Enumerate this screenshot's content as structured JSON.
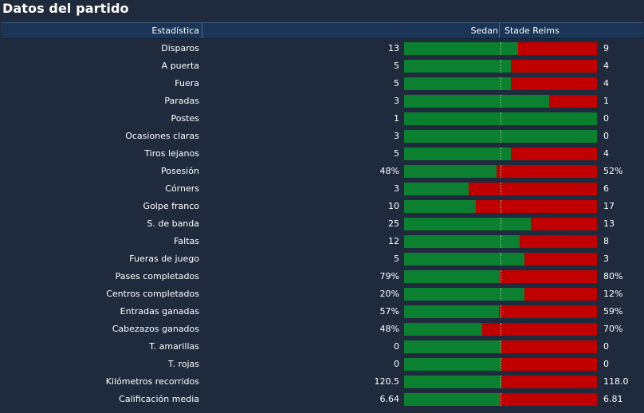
{
  "title": "Datos del partido",
  "header": {
    "stat_label": "Estadística",
    "home_team": "Sedan",
    "away_team": "Stade Reims"
  },
  "colors": {
    "home": "#0a8030",
    "away": "#c00000",
    "background": "#1f2b3c",
    "header": "#1b3556"
  },
  "stats": [
    {
      "label": "Disparos",
      "home": "13",
      "away": "9",
      "home_share": 0.59
    },
    {
      "label": "A puerta",
      "home": "5",
      "away": "4",
      "home_share": 0.555
    },
    {
      "label": "Fuera",
      "home": "5",
      "away": "4",
      "home_share": 0.555
    },
    {
      "label": "Paradas",
      "home": "3",
      "away": "1",
      "home_share": 0.75
    },
    {
      "label": "Postes",
      "home": "1",
      "away": "0",
      "home_share": 1.0
    },
    {
      "label": "Ocasiones claras",
      "home": "3",
      "away": "0",
      "home_share": 1.0
    },
    {
      "label": "Tiros lejanos",
      "home": "5",
      "away": "4",
      "home_share": 0.555
    },
    {
      "label": "Posesión",
      "home": "48%",
      "away": "52%",
      "home_share": 0.48
    },
    {
      "label": "Córners",
      "home": "3",
      "away": "6",
      "home_share": 0.333
    },
    {
      "label": "Golpe franco",
      "home": "10",
      "away": "17",
      "home_share": 0.37
    },
    {
      "label": "S. de banda",
      "home": "25",
      "away": "13",
      "home_share": 0.658
    },
    {
      "label": "Faltas",
      "home": "12",
      "away": "8",
      "home_share": 0.6
    },
    {
      "label": "Fueras de juego",
      "home": "5",
      "away": "3",
      "home_share": 0.625
    },
    {
      "label": "Pases completados",
      "home": "79%",
      "away": "80%",
      "home_share": 0.497
    },
    {
      "label": "Centros completados",
      "home": "20%",
      "away": "12%",
      "home_share": 0.625
    },
    {
      "label": "Entradas ganadas",
      "home": "57%",
      "away": "59%",
      "home_share": 0.491
    },
    {
      "label": "Cabezazos ganados",
      "home": "48%",
      "away": "70%",
      "home_share": 0.407
    },
    {
      "label": "T. amarillas",
      "home": "0",
      "away": "0",
      "home_share": 0.5
    },
    {
      "label": "T. rojas",
      "home": "0",
      "away": "0",
      "home_share": 0.5
    },
    {
      "label": "Kilómetros recorridos",
      "home": "120.5",
      "away": "118.0",
      "home_share": 0.505
    },
    {
      "label": "Calificación media",
      "home": "6.64",
      "away": "6.81",
      "home_share": 0.494
    }
  ]
}
